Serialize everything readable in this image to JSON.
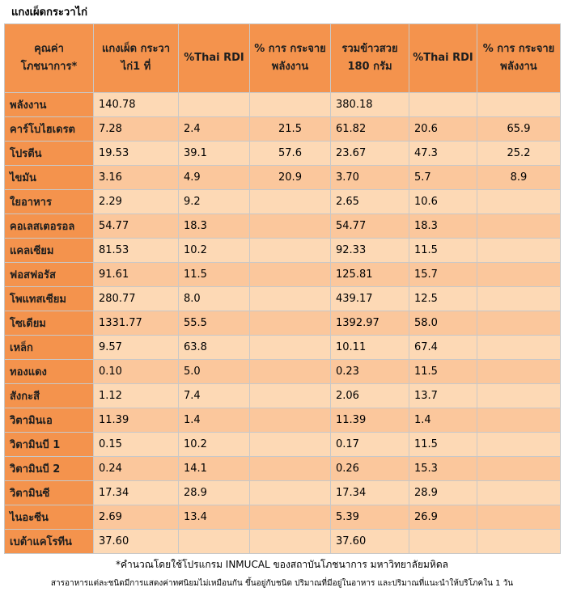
{
  "title": "แกงเผ็ดกระวาไก่",
  "headers": [
    "คุณค่า โภชนาการ*",
    "แกงเผ็ด กระวาไก่1 ที่",
    "%Thai RDI",
    "% การ กระจาย พลังงาน",
    "รวมข้าวสวย 180 กรัม",
    "%Thai RDI",
    "% การ กระจาย พลังงาน"
  ],
  "rows": [
    {
      "name": "พลังงาน",
      "cells": [
        "140.78",
        "",
        "",
        "380.18",
        "",
        ""
      ]
    },
    {
      "name": "คาร์โบไฮเดรต",
      "cells": [
        "7.28",
        "2.4",
        "21.5",
        "61.82",
        "20.6",
        "65.9"
      ]
    },
    {
      "name": "โปรตีน",
      "cells": [
        "19.53",
        "39.1",
        "57.6",
        "23.67",
        "47.3",
        "25.2"
      ]
    },
    {
      "name": "ไขมัน",
      "cells": [
        "3.16",
        "4.9",
        "20.9",
        "3.70",
        "5.7",
        "8.9"
      ]
    },
    {
      "name": "ใยอาหาร",
      "cells": [
        "2.29",
        "9.2",
        "",
        "2.65",
        "10.6",
        ""
      ]
    },
    {
      "name": "คอเลสเตอรอล",
      "cells": [
        "54.77",
        "18.3",
        "",
        "54.77",
        "18.3",
        ""
      ]
    },
    {
      "name": "แคลเซียม",
      "cells": [
        "81.53",
        "10.2",
        "",
        "92.33",
        "11.5",
        ""
      ]
    },
    {
      "name": "ฟอสฟอรัส",
      "cells": [
        "91.61",
        "11.5",
        "",
        "125.81",
        "15.7",
        ""
      ]
    },
    {
      "name": "โพแทสเซียม",
      "cells": [
        "280.77",
        "8.0",
        "",
        "439.17",
        "12.5",
        ""
      ]
    },
    {
      "name": "โซเดียม",
      "cells": [
        "1331.77",
        "55.5",
        "",
        "1392.97",
        "58.0",
        ""
      ]
    },
    {
      "name": "เหล็ก",
      "cells": [
        "9.57",
        "63.8",
        "",
        "10.11",
        "67.4",
        ""
      ]
    },
    {
      "name": "ทองแดง",
      "cells": [
        "0.10",
        "5.0",
        "",
        "0.23",
        "11.5",
        ""
      ]
    },
    {
      "name": "สังกะสี",
      "cells": [
        "1.12",
        "7.4",
        "",
        "2.06",
        "13.7",
        ""
      ]
    },
    {
      "name": "วิตามินเอ",
      "cells": [
        "11.39",
        "1.4",
        "",
        "11.39",
        "1.4",
        ""
      ]
    },
    {
      "name": "วิตามินบี 1",
      "cells": [
        "0.15",
        "10.2",
        "",
        "0.17",
        "11.5",
        ""
      ]
    },
    {
      "name": "วิตามินบี 2",
      "cells": [
        "0.24",
        "14.1",
        "",
        "0.26",
        "15.3",
        ""
      ]
    },
    {
      "name": "วิตามินซี",
      "cells": [
        "17.34",
        "28.9",
        "",
        "17.34",
        "28.9",
        ""
      ]
    },
    {
      "name": "ไนอะซีน",
      "cells": [
        "2.69",
        "13.4",
        "",
        "5.39",
        "26.9",
        ""
      ]
    },
    {
      "name": "เบต้าแคโรทีน",
      "cells": [
        "37.60",
        "",
        "",
        "37.60",
        "",
        ""
      ]
    }
  ],
  "footnote1": "*คำนวณโดยใช้โปรแกรม INMUCAL ของสถาบันโภชนาการ มหาวิทยาลัยมหิดล",
  "footnote2": "สารอาหารแต่ละชนิดมีการแสดงค่าทศนิยมไม่เหมือนกัน ขึ้นอยู่กับชนิด ปริมาณที่มีอยู่ในอาหาร และปริมาณที่แนะนำให้บริโภคใน 1 วัน",
  "colors": {
    "header_bg": "#f4934d",
    "row_light": "#fdd9b5",
    "row_dark": "#fbc79c",
    "border": "#c8c8c8"
  }
}
